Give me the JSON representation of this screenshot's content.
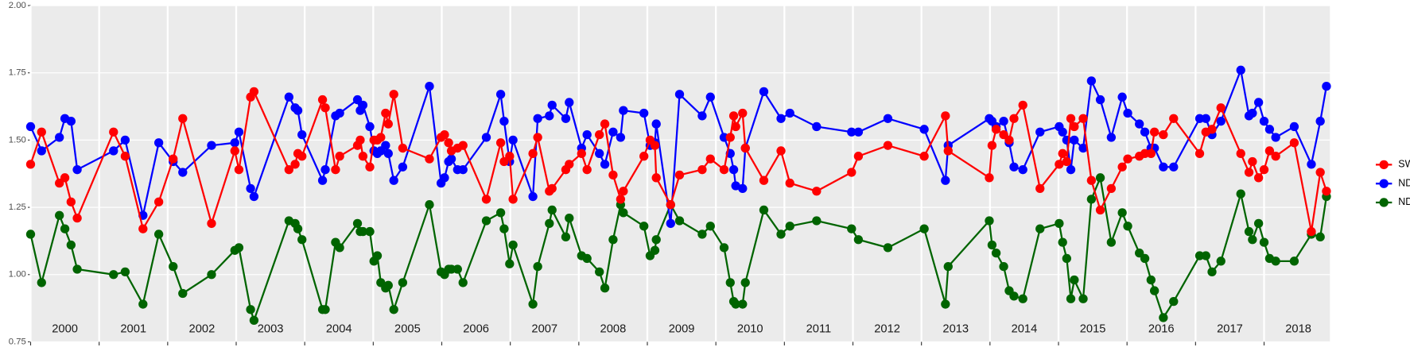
{
  "chart_data": {
    "type": "line",
    "x": [
      2000.0,
      2000.16,
      2000.42,
      2000.5,
      2000.59,
      2000.68,
      2001.21,
      2001.38,
      2001.64,
      2001.87,
      2002.08,
      2002.22,
      2002.64,
      2002.98,
      2003.04,
      2003.21,
      2003.26,
      2003.77,
      2003.86,
      2003.9,
      2003.96,
      2004.26,
      2004.3,
      2004.45,
      2004.51,
      2004.77,
      2004.81,
      2004.85,
      2004.95,
      2005.01,
      2005.06,
      2005.11,
      2005.18,
      2005.22,
      2005.3,
      2005.43,
      2005.82,
      2005.99,
      2006.04,
      2006.1,
      2006.14,
      2006.23,
      2006.31,
      2006.65,
      2006.86,
      2006.91,
      2006.99,
      2007.04,
      2007.33,
      2007.4,
      2007.57,
      2007.61,
      2007.81,
      2007.86,
      2008.04,
      2008.12,
      2008.3,
      2008.38,
      2008.5,
      2008.61,
      2008.65,
      2008.95,
      2009.04,
      2009.11,
      2009.13,
      2009.34,
      2009.47,
      2009.8,
      2009.92,
      2010.12,
      2010.21,
      2010.26,
      2010.29,
      2010.39,
      2010.43,
      2010.7,
      2010.95,
      2011.08,
      2011.47,
      2011.98,
      2012.08,
      2012.51,
      2013.04,
      2013.35,
      2013.39,
      2013.99,
      2014.03,
      2014.09,
      2014.2,
      2014.28,
      2014.35,
      2014.48,
      2014.73,
      2015.01,
      2015.06,
      2015.12,
      2015.18,
      2015.23,
      2015.36,
      2015.48,
      2015.61,
      2015.77,
      2015.93,
      2016.01,
      2016.18,
      2016.26,
      2016.35,
      2016.4,
      2016.53,
      2016.68,
      2017.06,
      2017.15,
      2017.24,
      2017.37,
      2017.66,
      2017.78,
      2017.83,
      2017.92,
      2018.0,
      2018.08,
      2018.17,
      2018.44,
      2018.69,
      2018.82,
      2018.91
    ],
    "series": [
      {
        "name": "SWIR",
        "color": "#ff0000",
        "values": [
          1.41,
          1.53,
          1.34,
          1.36,
          1.27,
          1.21,
          1.53,
          1.44,
          1.17,
          1.27,
          1.43,
          1.58,
          1.19,
          1.46,
          1.39,
          1.66,
          1.68,
          1.39,
          1.41,
          1.45,
          1.44,
          1.65,
          1.62,
          1.39,
          1.44,
          1.48,
          1.5,
          1.44,
          1.4,
          1.5,
          1.5,
          1.51,
          1.6,
          1.56,
          1.67,
          1.47,
          1.43,
          1.51,
          1.52,
          1.49,
          1.46,
          1.47,
          1.48,
          1.28,
          1.49,
          1.42,
          1.44,
          1.28,
          1.45,
          1.51,
          1.31,
          1.32,
          1.39,
          1.41,
          1.45,
          1.39,
          1.52,
          1.56,
          1.37,
          1.28,
          1.31,
          1.44,
          1.5,
          1.48,
          1.36,
          1.26,
          1.37,
          1.39,
          1.43,
          1.39,
          1.51,
          1.59,
          1.55,
          1.6,
          1.47,
          1.35,
          1.46,
          1.34,
          1.31,
          1.38,
          1.44,
          1.48,
          1.44,
          1.59,
          1.46,
          1.36,
          1.48,
          1.54,
          1.52,
          1.5,
          1.58,
          1.63,
          1.32,
          1.41,
          1.45,
          1.42,
          1.58,
          1.55,
          1.58,
          1.35,
          1.24,
          1.32,
          1.4,
          1.43,
          1.44,
          1.45,
          1.45,
          1.53,
          1.52,
          1.58,
          1.45,
          1.53,
          1.54,
          1.62,
          1.45,
          1.38,
          1.42,
          1.36,
          1.39,
          1.46,
          1.44,
          1.49,
          1.16,
          1.38,
          1.31
        ]
      },
      {
        "name": "NDVI",
        "color": "#0000ff",
        "values": [
          1.55,
          1.46,
          1.51,
          1.58,
          1.57,
          1.39,
          1.46,
          1.5,
          1.22,
          1.49,
          1.42,
          1.38,
          1.48,
          1.49,
          1.53,
          1.32,
          1.29,
          1.66,
          1.62,
          1.61,
          1.52,
          1.35,
          1.39,
          1.59,
          1.6,
          1.65,
          1.61,
          1.63,
          1.55,
          1.46,
          1.45,
          1.46,
          1.48,
          1.45,
          1.35,
          1.4,
          1.7,
          1.34,
          1.36,
          1.42,
          1.43,
          1.39,
          1.39,
          1.51,
          1.67,
          1.57,
          1.42,
          1.5,
          1.29,
          1.58,
          1.59,
          1.63,
          1.58,
          1.64,
          1.47,
          1.52,
          1.45,
          1.41,
          1.53,
          1.51,
          1.61,
          1.6,
          1.48,
          1.49,
          1.56,
          1.19,
          1.67,
          1.59,
          1.66,
          1.51,
          1.45,
          1.39,
          1.33,
          1.32,
          1.47,
          1.68,
          1.58,
          1.6,
          1.55,
          1.53,
          1.53,
          1.58,
          1.54,
          1.35,
          1.48,
          1.58,
          1.57,
          1.55,
          1.57,
          1.49,
          1.4,
          1.39,
          1.53,
          1.55,
          1.53,
          1.5,
          1.39,
          1.5,
          1.47,
          1.72,
          1.65,
          1.51,
          1.66,
          1.6,
          1.56,
          1.53,
          1.47,
          1.47,
          1.4,
          1.4,
          1.58,
          1.58,
          1.52,
          1.57,
          1.76,
          1.59,
          1.6,
          1.64,
          1.57,
          1.54,
          1.51,
          1.55,
          1.41,
          1.57,
          1.7
        ]
      },
      {
        "name": "NDWI",
        "color": "#006400",
        "values": [
          1.15,
          0.97,
          1.22,
          1.17,
          1.11,
          1.02,
          1.0,
          1.01,
          0.89,
          1.15,
          1.03,
          0.93,
          1.0,
          1.09,
          1.1,
          0.87,
          0.83,
          1.2,
          1.19,
          1.17,
          1.13,
          0.87,
          0.87,
          1.12,
          1.1,
          1.19,
          1.16,
          1.16,
          1.16,
          1.05,
          1.07,
          0.97,
          0.95,
          0.96,
          0.87,
          0.97,
          1.26,
          1.01,
          1.0,
          1.02,
          1.02,
          1.02,
          0.97,
          1.2,
          1.23,
          1.17,
          1.04,
          1.11,
          0.89,
          1.03,
          1.19,
          1.24,
          1.14,
          1.21,
          1.07,
          1.06,
          1.01,
          0.95,
          1.13,
          1.26,
          1.23,
          1.18,
          1.07,
          1.09,
          1.13,
          1.26,
          1.2,
          1.15,
          1.18,
          1.1,
          0.97,
          0.9,
          0.89,
          0.89,
          0.97,
          1.24,
          1.15,
          1.18,
          1.2,
          1.17,
          1.13,
          1.1,
          1.17,
          0.89,
          1.03,
          1.2,
          1.11,
          1.08,
          1.03,
          0.94,
          0.92,
          0.91,
          1.17,
          1.19,
          1.12,
          1.06,
          0.91,
          0.98,
          0.91,
          1.28,
          1.36,
          1.12,
          1.23,
          1.18,
          1.08,
          1.06,
          0.98,
          0.94,
          0.84,
          0.9,
          1.07,
          1.07,
          1.01,
          1.05,
          1.3,
          1.16,
          1.13,
          1.19,
          1.12,
          1.06,
          1.05,
          1.05,
          1.15,
          1.14,
          1.29
        ]
      }
    ],
    "xlim": [
      2000,
      2018.96
    ],
    "xticks": [
      2000,
      2001,
      2002,
      2003,
      2004,
      2005,
      2006,
      2007,
      2008,
      2009,
      2010,
      2011,
      2012,
      2013,
      2014,
      2015,
      2016,
      2017,
      2018
    ],
    "ylim": [
      0.75,
      2.0
    ],
    "yticks": [
      0.75,
      {
        "value": 1.0,
        "label": "1.00"
      },
      1.25,
      {
        "value": 1.5,
        "label": "1.50"
      },
      1.75,
      {
        "value": 2.0,
        "label": "2.00"
      }
    ],
    "grid": true,
    "legend": "right"
  }
}
